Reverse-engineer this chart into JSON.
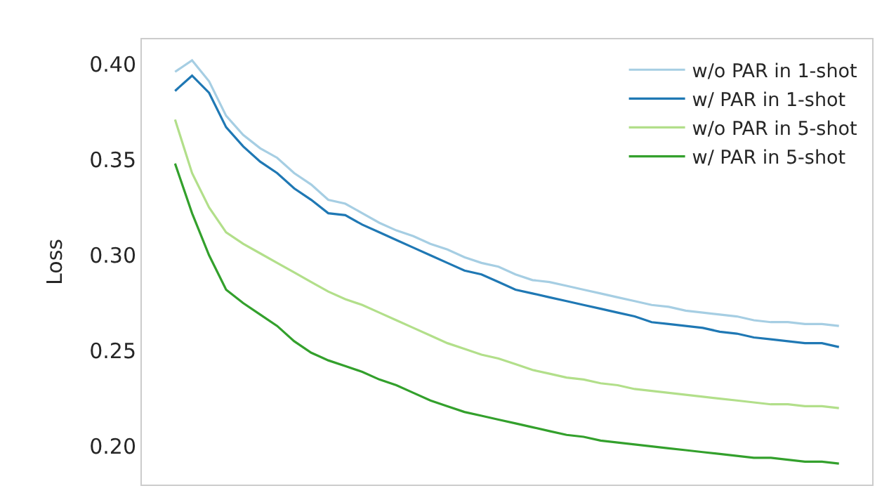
{
  "chart_data": {
    "type": "line",
    "ylabel": "Loss",
    "categories": [
      null,
      null,
      null,
      null,
      null,
      null,
      null,
      null,
      null,
      null,
      null,
      null,
      null,
      null,
      null,
      null,
      null,
      null,
      null,
      null,
      null,
      null,
      null,
      null,
      null,
      null,
      null,
      null,
      null,
      null,
      null,
      null,
      null,
      null,
      null,
      null,
      null,
      null,
      null,
      null
    ],
    "series": [
      {
        "name": "w/o PAR in 1-shot",
        "color": "#a6cee3",
        "values": [
          0.396,
          0.402,
          0.391,
          0.373,
          0.363,
          0.356,
          0.351,
          0.343,
          0.337,
          0.329,
          0.327,
          0.322,
          0.317,
          0.313,
          0.31,
          0.306,
          0.303,
          0.299,
          0.296,
          0.294,
          0.29,
          0.287,
          0.286,
          0.284,
          0.282,
          0.28,
          0.278,
          0.276,
          0.274,
          0.273,
          0.271,
          0.27,
          0.269,
          0.268,
          0.266,
          0.265,
          0.265,
          0.264,
          0.264,
          0.263
        ]
      },
      {
        "name": "w/ PAR in 1-shot",
        "color": "#1f78b4",
        "values": [
          0.386,
          0.394,
          0.385,
          0.367,
          0.357,
          0.349,
          0.343,
          0.335,
          0.329,
          0.322,
          0.321,
          0.316,
          0.312,
          0.308,
          0.304,
          0.3,
          0.296,
          0.292,
          0.29,
          0.286,
          0.282,
          0.28,
          0.278,
          0.276,
          0.274,
          0.272,
          0.27,
          0.268,
          0.265,
          0.264,
          0.263,
          0.262,
          0.26,
          0.259,
          0.257,
          0.256,
          0.255,
          0.254,
          0.254,
          0.252
        ]
      },
      {
        "name": "w/o PAR in 5-shot",
        "color": "#b2df8a",
        "values": [
          0.371,
          0.343,
          0.325,
          0.312,
          0.306,
          0.301,
          0.296,
          0.291,
          0.286,
          0.281,
          0.277,
          0.274,
          0.27,
          0.266,
          0.262,
          0.258,
          0.254,
          0.251,
          0.248,
          0.246,
          0.243,
          0.24,
          0.238,
          0.236,
          0.235,
          0.233,
          0.232,
          0.23,
          0.229,
          0.228,
          0.227,
          0.226,
          0.225,
          0.224,
          0.223,
          0.222,
          0.222,
          0.221,
          0.221,
          0.22
        ]
      },
      {
        "name": "w/ PAR in 5-shot",
        "color": "#33a02c",
        "values": [
          0.348,
          0.322,
          0.3,
          0.282,
          0.275,
          0.269,
          0.263,
          0.255,
          0.249,
          0.245,
          0.242,
          0.239,
          0.235,
          0.232,
          0.228,
          0.224,
          0.221,
          0.218,
          0.216,
          0.214,
          0.212,
          0.21,
          0.208,
          0.206,
          0.205,
          0.203,
          0.202,
          0.201,
          0.2,
          0.199,
          0.198,
          0.197,
          0.196,
          0.195,
          0.194,
          0.194,
          0.193,
          0.192,
          0.192,
          0.191
        ]
      }
    ],
    "ylim": [
      0.18,
      0.413
    ],
    "yticks": [
      {
        "value": 0.2,
        "label": "0.20"
      },
      {
        "value": 0.25,
        "label": "0.25"
      },
      {
        "value": 0.3,
        "label": "0.30"
      },
      {
        "value": 0.35,
        "label": "0.35"
      },
      {
        "value": 0.4,
        "label": "0.40"
      }
    ],
    "legend": "top right",
    "marker": "none",
    "line_style": "solid",
    "tick_labels": "y"
  }
}
